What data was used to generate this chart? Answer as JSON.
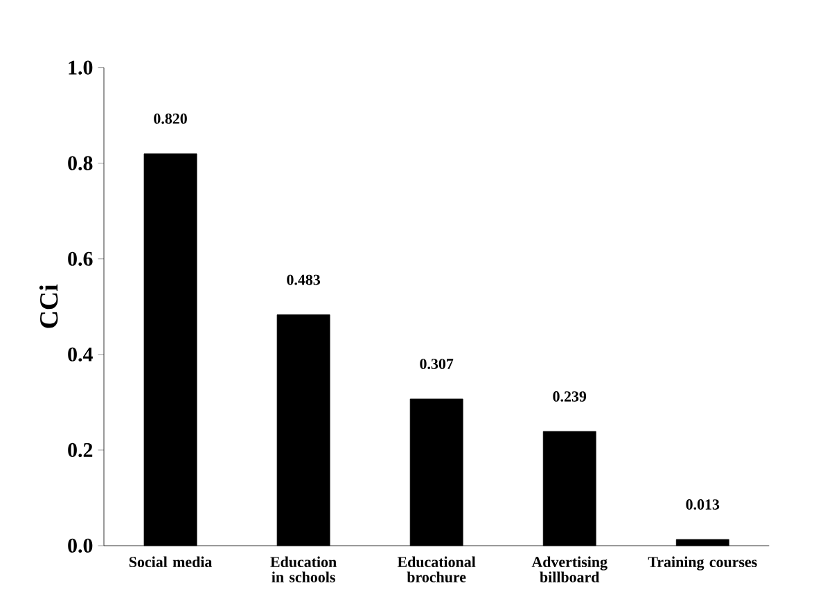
{
  "chart_data": {
    "type": "bar",
    "ylabel": "CCi",
    "categories": [
      "Social media",
      "Education in schools",
      "Educational brochure",
      "Advertising billboard",
      "Training courses"
    ],
    "values": [
      0.82,
      0.483,
      0.307,
      0.239,
      0.013
    ],
    "value_labels": [
      "0.820",
      "0.483",
      "0.307",
      "0.239",
      "0.013"
    ],
    "color": "#000000",
    "ylim": [
      0,
      1
    ],
    "yticks": [
      {
        "value": 0,
        "label": "0.0"
      },
      {
        "value": 0.2,
        "label": "0.2"
      },
      {
        "value": 0.4,
        "label": "0.4"
      },
      {
        "value": 0.6,
        "label": "0.6"
      },
      {
        "value": 0.8,
        "label": "0.8"
      },
      {
        "value": 1,
        "label": "1.0"
      }
    ]
  }
}
